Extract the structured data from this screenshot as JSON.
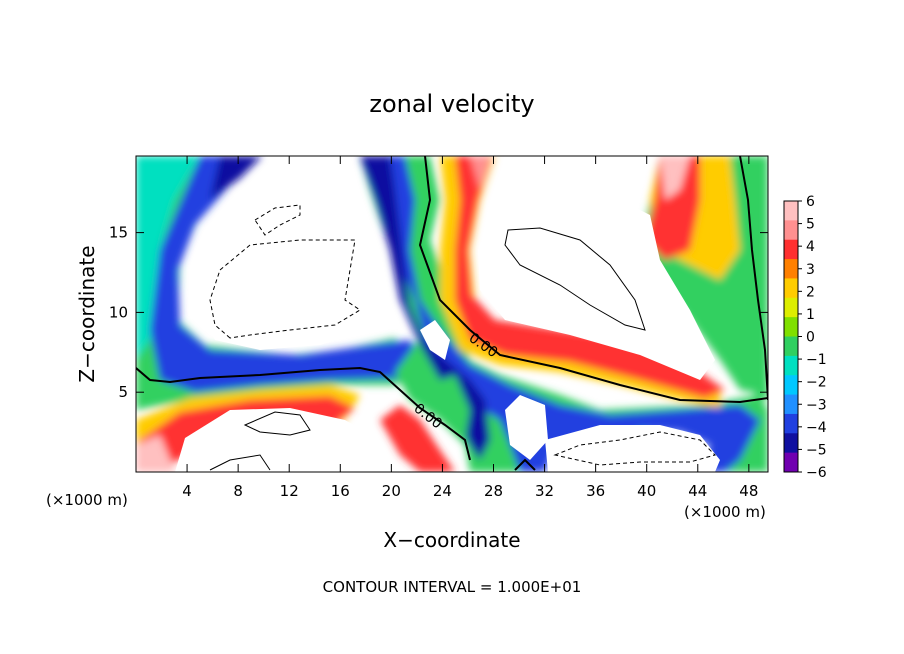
{
  "chart_data": {
    "type": "heatmap",
    "title": "zonal velocity",
    "xlabel": "X−coordinate",
    "ylabel": "Z−coordinate",
    "x_unit_left": "(×1000 m)",
    "x_unit_right": "(×1000 m)",
    "footer": "CONTOUR INTERVAL = 1.000E+01",
    "xlim": [
      0,
      49.5
    ],
    "ylim": [
      0,
      19.8
    ],
    "xticks": [
      4,
      8,
      12,
      16,
      20,
      24,
      28,
      32,
      36,
      40,
      44,
      48
    ],
    "yticks": [
      5,
      10,
      15
    ],
    "colorbar": {
      "ticks": [
        6,
        5,
        4,
        3,
        2,
        1,
        0,
        -1,
        -2,
        -3,
        -4,
        -5,
        -6
      ],
      "labels": [
        "6",
        "5",
        "4",
        "3",
        "2",
        "1",
        "0",
        "−1",
        "−2",
        "−3",
        "−4",
        "−5",
        "−6"
      ],
      "colors": [
        "#ffc0c0",
        "#ff9090",
        "#ff3030",
        "#ff8000",
        "#ffcc00",
        "#ddee00",
        "#80e000",
        "#30d060",
        "#00e0c0",
        "#00c8ff",
        "#2090ff",
        "#2040e0",
        "#1010a0",
        "#7000b0"
      ]
    },
    "contour_labels": [
      {
        "text": "0.00",
        "x": 26.5,
        "y": 8.2
      },
      {
        "text": "0.00",
        "x": 22.8,
        "y": 3.7
      }
    ]
  }
}
